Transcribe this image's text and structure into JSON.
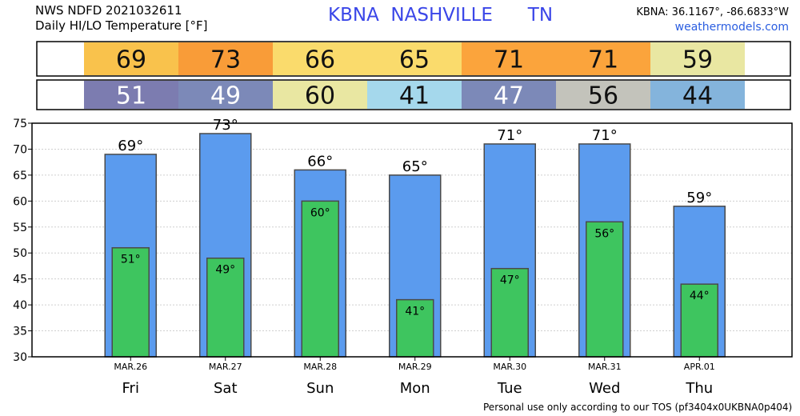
{
  "header": {
    "product": "NWS NDFD 2021032611",
    "subtitle": "Daily HI/LO Temperature [°F]",
    "station": "KBNA  NASHVILLE      TN",
    "coords": "KBNA: 36.1167°, -86.6833°W",
    "website": "weathermodels.com"
  },
  "footer": "Personal use only according to our TOS (pf3404x0UKBNA0p404)",
  "colors": {
    "high_bar": "#5b9bee",
    "low_bar": "#3ec55f",
    "bar_stroke": "#4a4a4a",
    "grid": "#cfcfcf",
    "high_row_colors": [
      "#f9c24c",
      "#f99c38",
      "#fadb6c",
      "#fadb6c",
      "#fba43c",
      "#fba43c",
      "#e9e7a2"
    ],
    "low_row_colors": [
      "#7c7cb0",
      "#7c89b8",
      "#e9e7a2",
      "#a5d8ec",
      "#7c89b8",
      "#c3c3bb",
      "#84b4dc"
    ]
  },
  "chart_data": {
    "type": "bar",
    "title": "Daily HI/LO Temperature [°F]",
    "categories": [
      "Fri",
      "Sat",
      "Sun",
      "Mon",
      "Tue",
      "Wed",
      "Thu"
    ],
    "dates": [
      "MAR.26",
      "MAR.27",
      "MAR.28",
      "MAR.29",
      "MAR.30",
      "MAR.31",
      "APR.01"
    ],
    "series": [
      {
        "name": "HI",
        "values": [
          69,
          73,
          66,
          65,
          71,
          71,
          59
        ]
      },
      {
        "name": "LO",
        "values": [
          51,
          49,
          60,
          41,
          47,
          56,
          44
        ]
      }
    ],
    "unit": "°",
    "ylim": [
      30,
      75
    ],
    "yticks": [
      30,
      35,
      40,
      45,
      50,
      55,
      60,
      65,
      70,
      75
    ],
    "grid": true
  }
}
